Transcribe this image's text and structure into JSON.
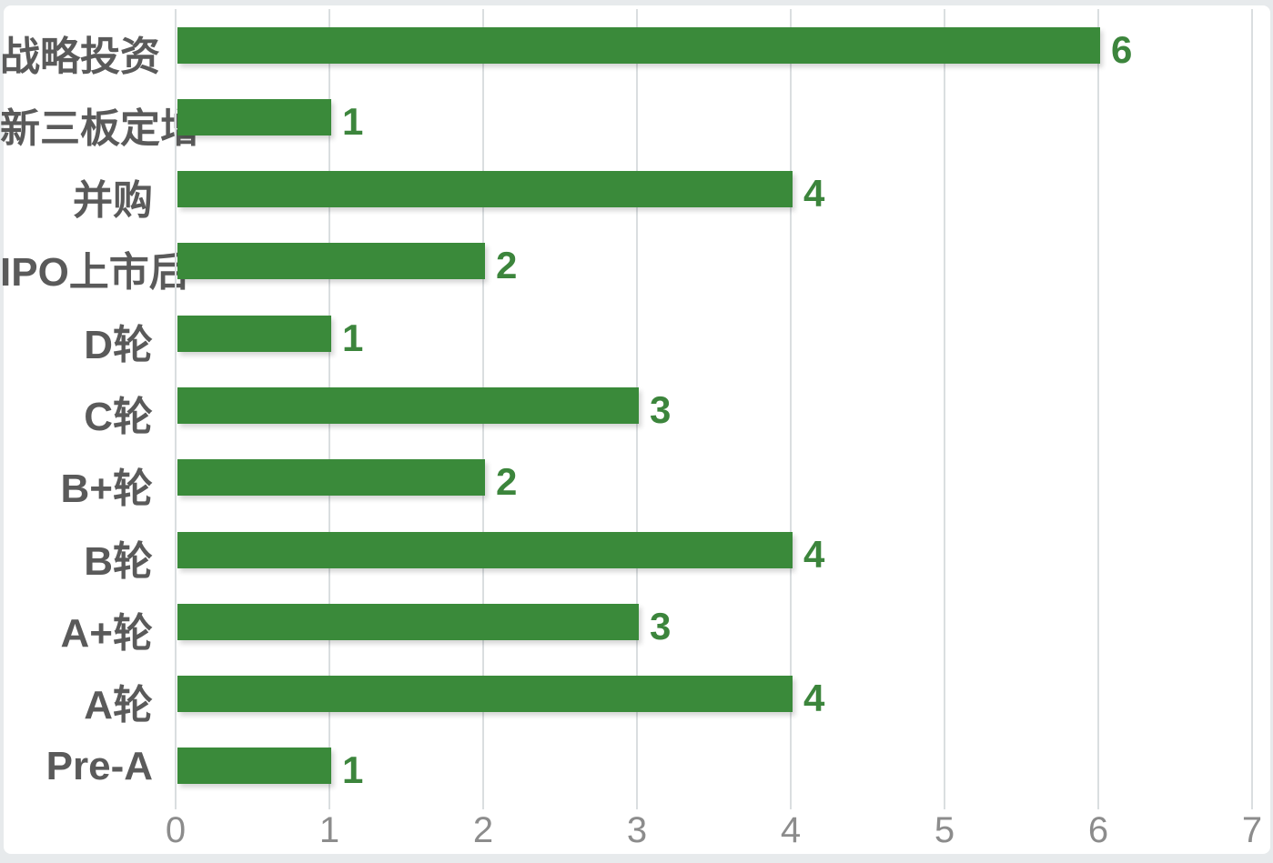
{
  "chart_data": {
    "type": "bar",
    "orientation": "horizontal",
    "title": "",
    "xlabel": "",
    "ylabel": "",
    "categories": [
      "战略投资",
      "新三板定增",
      "并购",
      "IPO上市后",
      "D轮",
      "C轮",
      "B+轮",
      "B轮",
      "A+轮",
      "A轮",
      "Pre-A"
    ],
    "values": [
      6,
      1,
      4,
      2,
      1,
      3,
      2,
      4,
      3,
      4,
      1
    ],
    "value_labels": [
      "6",
      "1",
      "4",
      "2",
      "1",
      "3",
      "2",
      "4",
      "3",
      "4",
      "1"
    ],
    "xticks": [
      0,
      1,
      2,
      3,
      4,
      5,
      6,
      7
    ],
    "xtick_labels": [
      "0",
      "1",
      "2",
      "3",
      "4",
      "5",
      "6",
      "7"
    ],
    "xlim": [
      0,
      7
    ],
    "grid": true,
    "legend": false,
    "colors": {
      "bar": "#3a8a3a",
      "value_label": "#3c853c",
      "category_label": "#5a5a5a",
      "tick_label": "#8c8c8c",
      "gridline": "#dadee0",
      "background": "#ffffff",
      "page_border": "#e7eaec"
    }
  }
}
